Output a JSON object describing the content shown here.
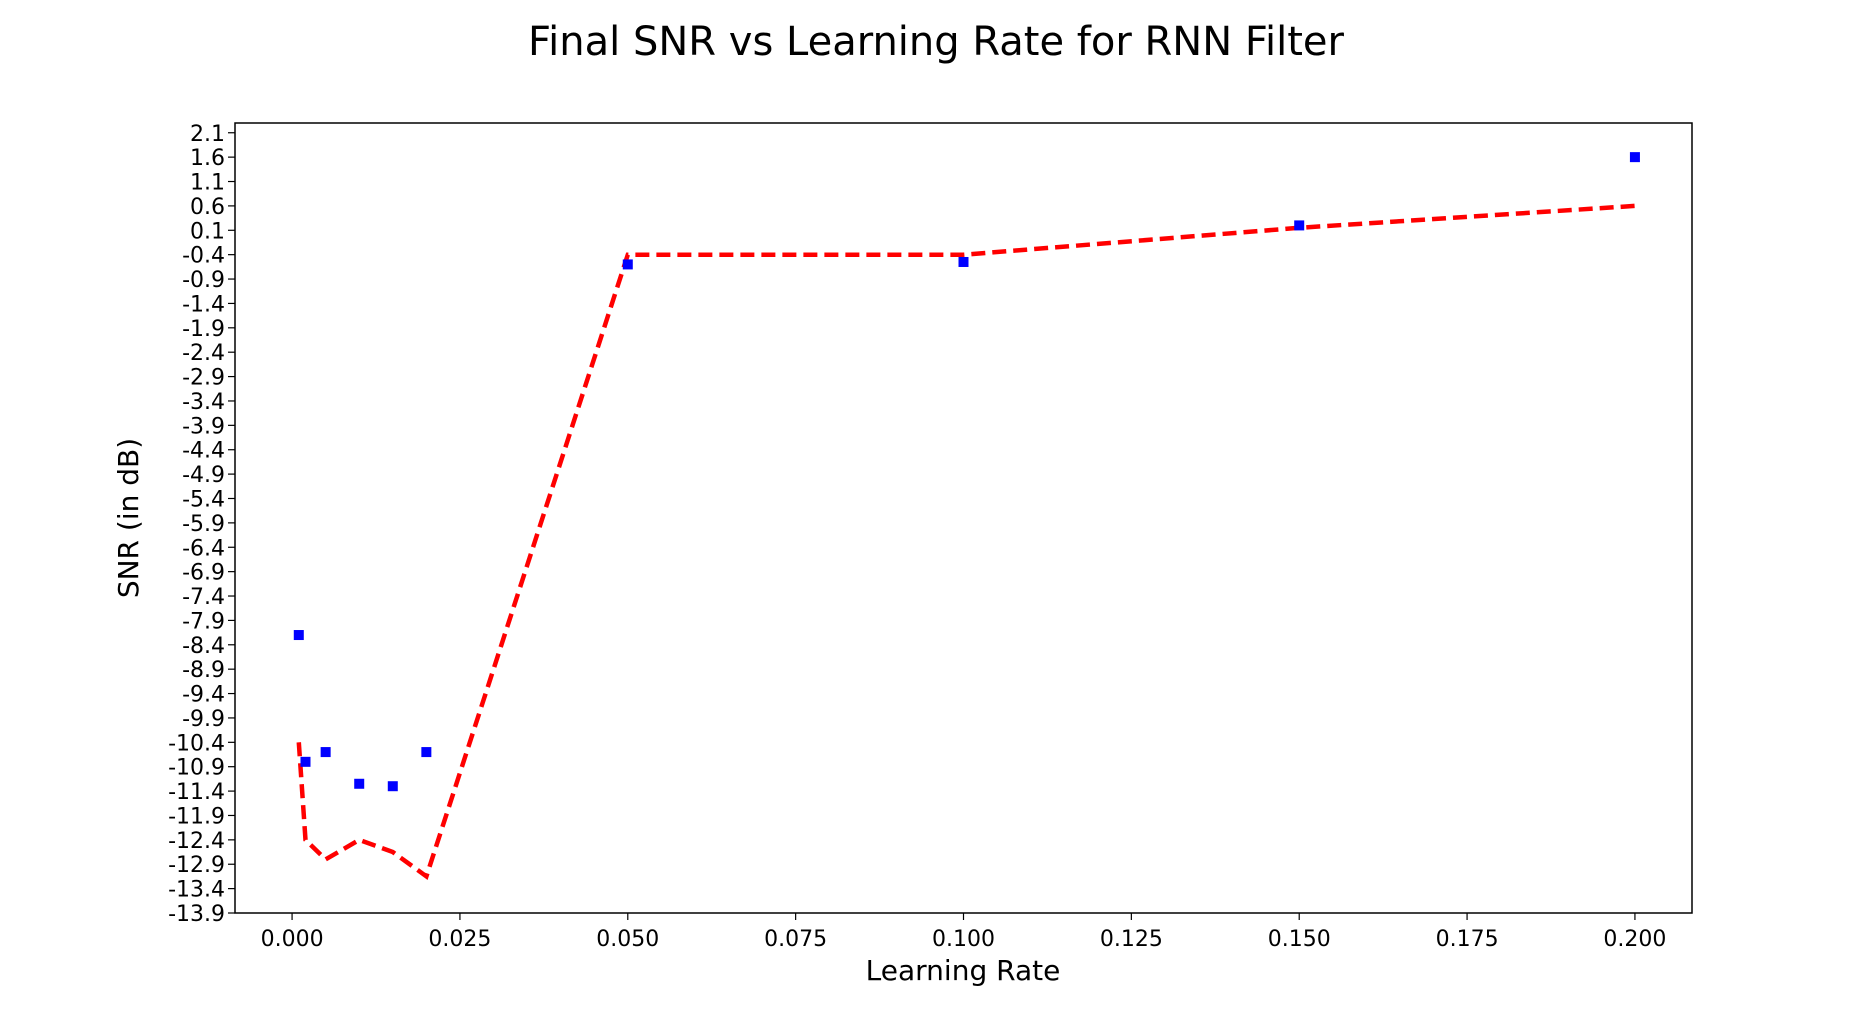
{
  "chart_data": {
    "type": "scatter",
    "title": "Final SNR vs Learning Rate for RNN Filter",
    "xlabel": "Learning Rate",
    "ylabel": "SNR (in dB)",
    "xlim": [
      -0.0085,
      0.2085
    ],
    "ylim": [
      -13.9,
      2.3
    ],
    "x_ticks": [
      "0.000",
      "0.025",
      "0.050",
      "0.075",
      "0.100",
      "0.125",
      "0.150",
      "0.175",
      "0.200"
    ],
    "y_ticks": [
      "2.1",
      "1.6",
      "1.1",
      "0.6",
      "0.1",
      "-0.4",
      "-0.9",
      "-1.4",
      "-1.9",
      "-2.4",
      "-2.9",
      "-3.4",
      "-3.9",
      "-4.4",
      "-4.9",
      "-5.4",
      "-5.9",
      "-6.4",
      "-6.9",
      "-7.4",
      "-7.9",
      "-8.4",
      "-8.9",
      "-9.4",
      "-9.9",
      "-10.4",
      "-10.9",
      "-11.4",
      "-11.9",
      "-12.4",
      "-12.9",
      "-13.4",
      "-13.9"
    ],
    "grid": false,
    "legend": "none",
    "series": [
      {
        "style": "markers",
        "marker": "square",
        "color": "#0000ff",
        "x": [
          0.001,
          0.002,
          0.005,
          0.01,
          0.015,
          0.02,
          0.05,
          0.1,
          0.15,
          0.2
        ],
        "y": [
          -8.2,
          -10.8,
          -10.6,
          -11.25,
          -11.3,
          -10.6,
          -0.6,
          -0.55,
          0.2,
          1.6
        ]
      },
      {
        "style": "dashed-line",
        "color": "#ff0000",
        "x": [
          0.001,
          0.002,
          0.005,
          0.01,
          0.015,
          0.02,
          0.05,
          0.1,
          0.15,
          0.2
        ],
        "y": [
          -10.4,
          -12.4,
          -12.8,
          -12.4,
          -12.65,
          -13.15,
          -0.4,
          -0.4,
          0.15,
          0.6
        ]
      }
    ]
  }
}
